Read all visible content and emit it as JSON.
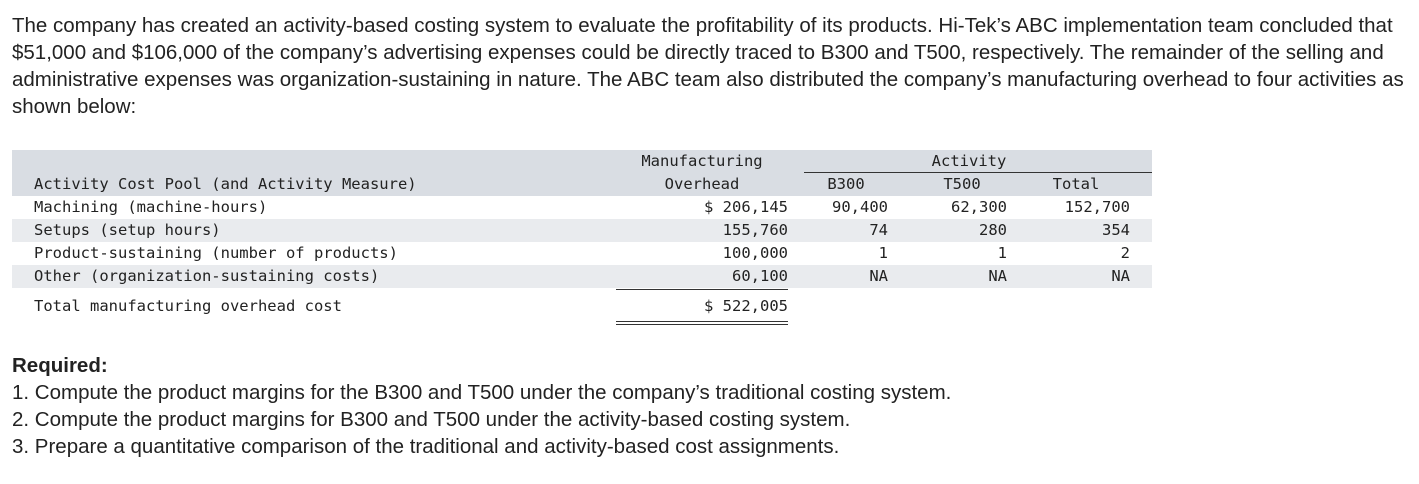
{
  "intro": "The company has created an activity-based costing system to evaluate the profitability of its products. Hi-Tek’s ABC implementation team concluded that $51,000 and $106,000 of the company’s advertising expenses could be directly traced to B300 and T500, respectively. The remainder of the selling and administrative expenses was organization-sustaining in nature. The ABC team also distributed the company’s manufacturing overhead to four activities as shown below:",
  "table": {
    "header": {
      "manufacturing_line1": "Manufacturing",
      "manufacturing_line2": "Overhead",
      "activity": "Activity",
      "pool": "Activity Cost Pool (and Activity Measure)",
      "b300": "B300",
      "t500": "T500",
      "total": "Total"
    },
    "rows": [
      {
        "name": "Machining (machine-hours)",
        "overhead": "$ 206,145",
        "b300": "90,400",
        "t500": "62,300",
        "total": "152,700"
      },
      {
        "name": "Setups (setup hours)",
        "overhead": "155,760",
        "b300": "74",
        "t500": "280",
        "total": "354"
      },
      {
        "name": "Product-sustaining (number of products)",
        "overhead": "100,000",
        "b300": "1",
        "t500": "1",
        "total": "2"
      },
      {
        "name": "Other (organization-sustaining costs)",
        "overhead": "60,100",
        "b300": "NA",
        "t500": "NA",
        "total": "NA"
      }
    ],
    "total_row": {
      "name": "Total manufacturing overhead cost",
      "overhead": "$ 522,005"
    }
  },
  "required": {
    "title": "Required:",
    "items": [
      "1. Compute the product margins for the B300 and T500 under the company’s traditional costing system.",
      "2. Compute the product margins for B300 and T500 under the activity-based costing system.",
      "3. Prepare a quantitative comparison of the traditional and activity-based cost assignments."
    ]
  }
}
